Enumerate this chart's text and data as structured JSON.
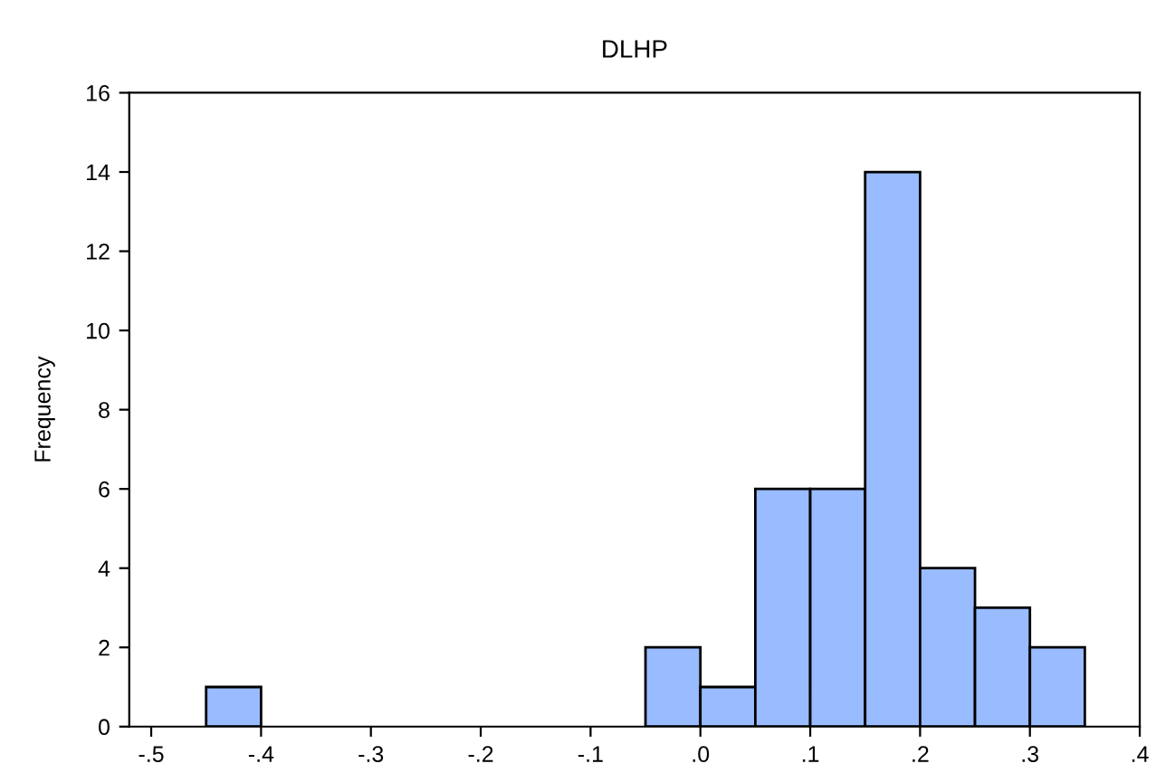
{
  "chart_data": {
    "type": "histogram",
    "title": "DLHP",
    "ylabel": "Frequency",
    "color": "#99bbff",
    "bins": [
      -0.45,
      -0.4,
      -0.35,
      -0.3,
      -0.25,
      -0.2,
      -0.15,
      -0.1,
      -0.05,
      0.0,
      0.05,
      0.1,
      0.15,
      0.2,
      0.25,
      0.3,
      0.35
    ],
    "values": [
      1,
      0,
      0,
      0,
      0,
      0,
      0,
      0,
      2,
      1,
      6,
      6,
      14,
      4,
      3,
      2
    ],
    "xlim": [
      -0.52,
      0.4
    ],
    "xticks": [
      {
        "value": -0.5,
        "label": "-.5"
      },
      {
        "value": -0.4,
        "label": "-.4"
      },
      {
        "value": -0.3,
        "label": "-.3"
      },
      {
        "value": -0.2,
        "label": "-.2"
      },
      {
        "value": -0.1,
        "label": "-.1"
      },
      {
        "value": 0.0,
        "label": ".0"
      },
      {
        "value": 0.1,
        "label": ".1"
      },
      {
        "value": 0.2,
        "label": ".2"
      },
      {
        "value": 0.3,
        "label": ".3"
      },
      {
        "value": 0.4,
        "label": ".4"
      }
    ],
    "ylim": [
      0,
      16
    ],
    "yticks": [
      0,
      2,
      4,
      6,
      8,
      10,
      12,
      14,
      16
    ],
    "grid": false
  }
}
